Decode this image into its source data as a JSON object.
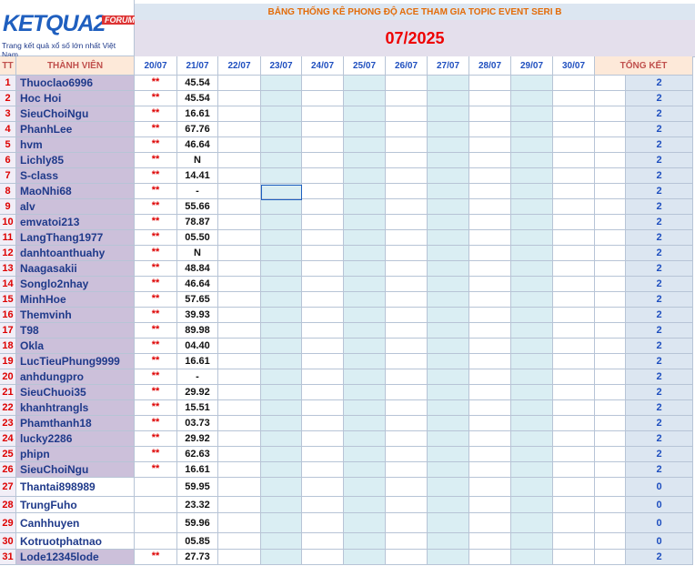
{
  "logo": {
    "brand": "KETQUA2",
    "badge": "FORUM",
    "tagline": "Trang kết quả xổ số lớn nhất Việt Nam"
  },
  "header": {
    "title": "BẢNG THỐNG KÊ PHONG ĐỘ ACE THAM GIA TOPIC EVENT SERI B",
    "month": "07/2025"
  },
  "table": {
    "columns": [
      "TT",
      "THÀNH VIÊN",
      "20/07",
      "21/07",
      "22/07",
      "23/07",
      "24/07",
      "25/07",
      "26/07",
      "27/07",
      "28/07",
      "29/07",
      "30/07",
      "TỔNG KẾT"
    ],
    "rows": [
      {
        "tt": "1",
        "name": "Thuoclao6996",
        "d2007": "**",
        "d2107": "45.54",
        "total": "2"
      },
      {
        "tt": "2",
        "name": "Hoc Hoi",
        "d2007": "**",
        "d2107": "45.54",
        "total": "2"
      },
      {
        "tt": "3",
        "name": "SieuChoiNgu",
        "d2007": "**",
        "d2107": "16.61",
        "total": "2"
      },
      {
        "tt": "4",
        "name": "PhanhLee",
        "d2007": "**",
        "d2107": "67.76",
        "total": "2"
      },
      {
        "tt": "5",
        "name": "hvm",
        "d2007": "**",
        "d2107": "46.64",
        "total": "2"
      },
      {
        "tt": "6",
        "name": "Lichly85",
        "d2007": "**",
        "d2107": "N",
        "total": "2"
      },
      {
        "tt": "7",
        "name": "S-class",
        "d2007": "**",
        "d2107": "14.41",
        "total": "2"
      },
      {
        "tt": "8",
        "name": "MaoNhi68",
        "d2007": "**",
        "d2107": "-",
        "total": "2"
      },
      {
        "tt": "9",
        "name": "alv",
        "d2007": "**",
        "d2107": "55.66",
        "total": "2"
      },
      {
        "tt": "10",
        "name": "emvatoi213",
        "d2007": "**",
        "d2107": "78.87",
        "total": "2"
      },
      {
        "tt": "11",
        "name": "LangThang1977",
        "d2007": "**",
        "d2107": "05.50",
        "total": "2"
      },
      {
        "tt": "12",
        "name": "danhtoanthuahy",
        "d2007": "**",
        "d2107": "N",
        "total": "2"
      },
      {
        "tt": "13",
        "name": "Naagasakii",
        "d2007": "**",
        "d2107": "48.84",
        "total": "2"
      },
      {
        "tt": "14",
        "name": "Songlo2nhay",
        "d2007": "**",
        "d2107": "46.64",
        "total": "2"
      },
      {
        "tt": "15",
        "name": "MinhHoe",
        "d2007": "**",
        "d2107": "57.65",
        "total": "2"
      },
      {
        "tt": "16",
        "name": "Themvinh",
        "d2007": "**",
        "d2107": "39.93",
        "total": "2"
      },
      {
        "tt": "17",
        "name": "T98",
        "d2007": "**",
        "d2107": "89.98",
        "total": "2"
      },
      {
        "tt": "18",
        "name": "Okla",
        "d2007": "**",
        "d2107": "04.40",
        "total": "2"
      },
      {
        "tt": "19",
        "name": "LucTieuPhung9999",
        "d2007": "**",
        "d2107": "16.61",
        "total": "2"
      },
      {
        "tt": "20",
        "name": "anhdungpro",
        "d2007": "**",
        "d2107": "-",
        "total": "2"
      },
      {
        "tt": "21",
        "name": "SieuChuoi35",
        "d2007": "**",
        "d2107": "29.92",
        "total": "2"
      },
      {
        "tt": "22",
        "name": "khanhtrangls",
        "d2007": "**",
        "d2107": "15.51",
        "total": "2"
      },
      {
        "tt": "23",
        "name": "Phamthanh18",
        "d2007": "**",
        "d2107": "03.73",
        "total": "2"
      },
      {
        "tt": "24",
        "name": "lucky2286",
        "d2007": "**",
        "d2107": "29.92",
        "total": "2"
      },
      {
        "tt": "25",
        "name": "phipn",
        "d2007": "**",
        "d2107": "62.63",
        "total": "2"
      },
      {
        "tt": "26",
        "name": "SieuChoiNgu",
        "d2007": "**",
        "d2107": "16.61",
        "total": "2"
      },
      {
        "tt": "27",
        "name": "Thantai898989",
        "d2107": "59.95",
        "total": "0"
      },
      {
        "tt": "28",
        "name": "TrungFuho",
        "d2107": "23.32",
        "total": "0"
      },
      {
        "tt": "29",
        "name": "Canhhuyen",
        "d2107": "59.96",
        "total": "0"
      },
      {
        "tt": "30",
        "name": "Kotruotphatnao",
        "d2107": "05.85",
        "total": "0"
      },
      {
        "tt": "31",
        "name": "Lode12345lode",
        "d2007": "**",
        "d2107": "27.73",
        "total": "2"
      }
    ]
  }
}
